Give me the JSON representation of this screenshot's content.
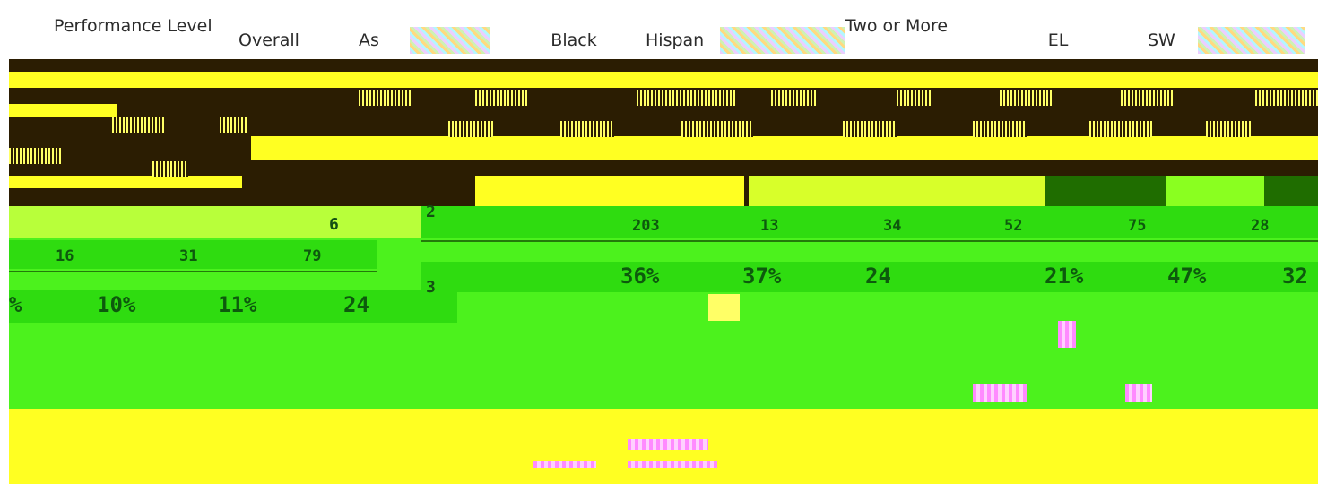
{
  "header": {
    "performance_level": "Performance Level",
    "overall": "Overall",
    "asian": "As",
    "black": "Black",
    "hispanic": "Hispan",
    "two_or_more": "Two or More",
    "el": "EL",
    "swd": "SW"
  },
  "level_2": {
    "level_label": "2",
    "counts": [
      "203",
      "13",
      "34",
      "52",
      "75",
      "28"
    ],
    "percents": [
      "36%",
      "37%",
      "24",
      "21%",
      "47%",
      "32"
    ]
  },
  "left_fragment": {
    "level_label": "6",
    "counts": [
      "16",
      "31",
      "79"
    ],
    "percents": [
      "%",
      "10%",
      "11%",
      "24"
    ]
  },
  "level_3": {
    "level_label": "3"
  },
  "colors": {
    "dark_band": "#2b1d02",
    "yellow": "#ffff22",
    "green": "#4cf21d",
    "text_green": "#0d5a0d"
  }
}
